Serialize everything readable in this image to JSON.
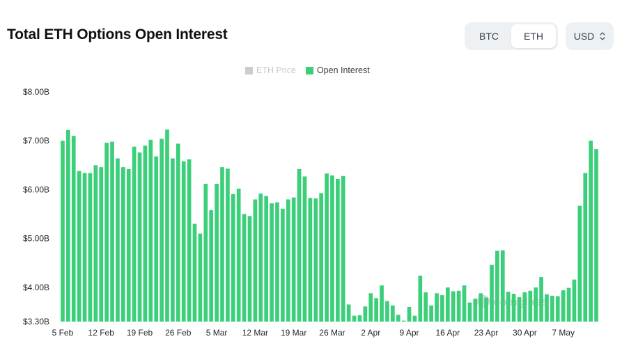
{
  "header": {
    "title": "Total ETH Options Open Interest",
    "asset_options": [
      "BTC",
      "ETH"
    ],
    "active_asset": "ETH",
    "currency": "USD"
  },
  "legend": [
    {
      "label": "ETH Price",
      "color": "#cccccc",
      "enabled": false
    },
    {
      "label": "Open Interest",
      "color": "#3ccf7a",
      "enabled": true
    }
  ],
  "watermark": "coinglass",
  "chart_data": {
    "type": "bar",
    "series": [
      {
        "name": "Open Interest",
        "color": "#3ccf7a",
        "values": [
          7.0,
          7.22,
          7.1,
          6.38,
          6.34,
          6.34,
          6.5,
          6.46,
          6.96,
          6.98,
          6.64,
          6.46,
          6.42,
          6.88,
          6.76,
          6.9,
          7.02,
          6.68,
          7.04,
          7.23,
          6.64,
          6.94,
          6.58,
          6.62,
          5.3,
          5.1,
          6.12,
          5.58,
          6.12,
          6.46,
          6.43,
          5.91,
          6.02,
          5.5,
          5.46,
          5.8,
          5.92,
          5.87,
          5.72,
          5.74,
          5.61,
          5.8,
          5.84,
          6.42,
          6.27,
          5.83,
          5.82,
          5.93,
          6.33,
          6.29,
          6.22,
          6.28,
          3.65,
          3.42,
          3.43,
          3.61,
          3.88,
          3.78,
          4.04,
          3.72,
          3.63,
          3.44,
          3.32,
          3.6,
          3.42,
          4.24,
          3.9,
          3.63,
          3.88,
          3.84,
          4.0,
          3.92,
          3.93,
          4.04,
          3.69,
          3.77,
          3.88,
          3.79,
          4.46,
          4.75,
          4.76,
          3.91,
          3.87,
          3.8,
          3.9,
          3.93,
          4.0,
          4.21,
          3.86,
          3.83,
          3.82,
          3.94,
          3.99,
          4.16,
          5.67,
          6.34,
          7.0,
          6.83
        ]
      }
    ],
    "x_tick_labels": [
      "5 Feb",
      "12 Feb",
      "19 Feb",
      "26 Feb",
      "5 Mar",
      "12 Mar",
      "19 Mar",
      "26 Mar",
      "2 Apr",
      "9 Apr",
      "16 Apr",
      "23 Apr",
      "30 Apr",
      "7 May"
    ],
    "x_tick_indices": [
      0,
      7,
      14,
      21,
      28,
      35,
      42,
      49,
      56,
      63,
      70,
      77,
      84,
      91
    ],
    "y_ticks": [
      "$3.30B",
      "$4.00B",
      "$5.00B",
      "$6.00B",
      "$7.00B",
      "$8.00B"
    ],
    "y_tick_values": [
      3.3,
      4.0,
      5.0,
      6.0,
      7.0,
      8.0
    ],
    "ylim": [
      3.3,
      8.0
    ],
    "xlabel": "",
    "ylabel": "",
    "grid": false,
    "legend_position": "top-center"
  }
}
